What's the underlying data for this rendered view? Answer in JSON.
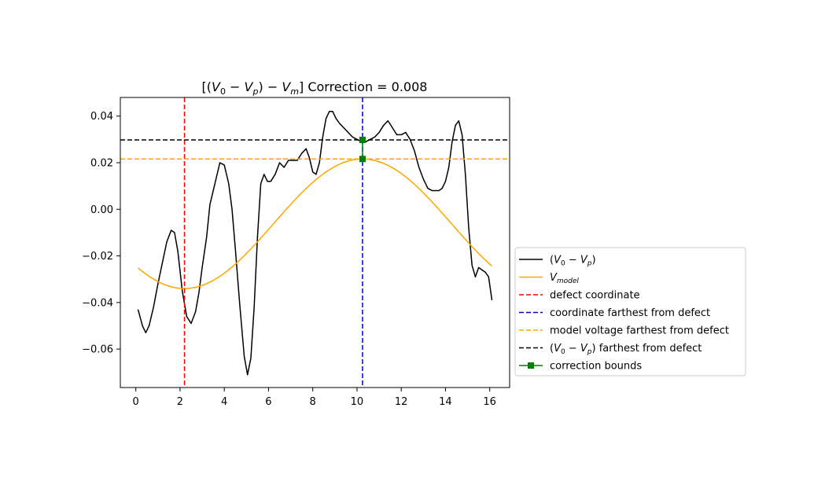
{
  "chart_data": {
    "type": "line",
    "title": "[(V₀ − Vₚ) − Vₘ] Correction = 0.008",
    "title_parts": {
      "prefix": "[(",
      "v0": "V",
      "v0_sub": "0",
      "minus1": " − ",
      "vp": "V",
      "vp_sub": "p",
      "mid": ") − ",
      "vm": "V",
      "vm_sub": "m",
      "suffix": "] Correction = 0.008"
    },
    "xlabel": "",
    "ylabel": "",
    "xlim": [
      -0.7,
      16.9
    ],
    "ylim": [
      -0.0765,
      0.048
    ],
    "xticks": [
      0,
      2,
      4,
      6,
      8,
      10,
      12,
      14,
      16
    ],
    "yticks": [
      -0.06,
      -0.04,
      -0.02,
      0.0,
      0.02,
      0.04
    ],
    "ytick_labels": [
      "−0.06",
      "−0.04",
      "−0.02",
      "0.00",
      "0.02",
      "0.04"
    ],
    "grid": false,
    "legend_position": "outside-right",
    "series": [
      {
        "name": "(V₀ − Vₚ)",
        "color": "#000000",
        "style": "solid",
        "x": [
          0.1,
          0.3,
          0.45,
          0.6,
          0.8,
          1.0,
          1.2,
          1.4,
          1.6,
          1.75,
          1.9,
          2.1,
          2.3,
          2.5,
          2.7,
          2.85,
          3.0,
          3.2,
          3.35,
          3.5,
          3.65,
          3.8,
          4.0,
          4.2,
          4.35,
          4.5,
          4.7,
          4.9,
          5.05,
          5.2,
          5.35,
          5.5,
          5.65,
          5.8,
          5.95,
          6.1,
          6.3,
          6.5,
          6.7,
          6.9,
          7.1,
          7.3,
          7.5,
          7.7,
          7.85,
          8.0,
          8.15,
          8.3,
          8.45,
          8.6,
          8.75,
          8.9,
          9.05,
          9.2,
          9.4,
          9.6,
          9.8,
          10.0,
          10.2,
          10.4,
          10.6,
          10.8,
          11.0,
          11.2,
          11.4,
          11.6,
          11.8,
          12.0,
          12.2,
          12.4,
          12.6,
          12.8,
          13.0,
          13.2,
          13.4,
          13.55,
          13.7,
          13.85,
          14.0,
          14.15,
          14.3,
          14.45,
          14.6,
          14.75,
          14.9,
          15.05,
          15.2,
          15.35,
          15.5,
          15.65,
          15.8,
          15.95,
          16.1
        ],
        "y": [
          -0.043,
          -0.05,
          -0.053,
          -0.05,
          -0.042,
          -0.032,
          -0.023,
          -0.014,
          -0.009,
          -0.01,
          -0.018,
          -0.035,
          -0.046,
          -0.049,
          -0.044,
          -0.036,
          -0.025,
          -0.012,
          0.002,
          0.008,
          0.014,
          0.02,
          0.019,
          0.011,
          0.0,
          -0.017,
          -0.041,
          -0.063,
          -0.071,
          -0.064,
          -0.042,
          -0.012,
          0.011,
          0.015,
          0.012,
          0.012,
          0.015,
          0.02,
          0.018,
          0.021,
          0.021,
          0.021,
          0.024,
          0.026,
          0.022,
          0.016,
          0.015,
          0.02,
          0.031,
          0.039,
          0.042,
          0.042,
          0.039,
          0.037,
          0.035,
          0.033,
          0.031,
          0.03,
          0.029,
          0.029,
          0.03,
          0.031,
          0.033,
          0.036,
          0.038,
          0.035,
          0.032,
          0.032,
          0.033,
          0.03,
          0.025,
          0.018,
          0.013,
          0.009,
          0.008,
          0.008,
          0.008,
          0.009,
          0.012,
          0.018,
          0.029,
          0.036,
          0.038,
          0.032,
          0.015,
          -0.008,
          -0.024,
          -0.029,
          -0.025,
          -0.026,
          -0.027,
          -0.029,
          -0.039
        ]
      },
      {
        "name": "V_model",
        "name_parts": {
          "main": "V",
          "sub": "model"
        },
        "color": "#ffa500",
        "style": "solid",
        "model": {
          "amplitude": 0.0278,
          "offset": -0.0062,
          "center": 10.25,
          "period": 16.1,
          "x_start": 0.1,
          "x_end": 16.1
        }
      },
      {
        "name": "defect coordinate",
        "color": "#ff0000",
        "style": "dashed",
        "orientation": "vertical",
        "value": 2.2
      },
      {
        "name": "coordinate farthest from defect",
        "color": "#0000cd",
        "style": "dashed",
        "orientation": "vertical",
        "value": 10.25
      },
      {
        "name": "model voltage farthest from defect",
        "color": "#ffa500",
        "style": "dashed",
        "orientation": "horizontal",
        "value": 0.0216
      },
      {
        "name": "(V₀ − Vₚ) farthest from defect",
        "color": "#000000",
        "style": "dashed",
        "orientation": "horizontal",
        "value": 0.0298
      },
      {
        "name": "correction bounds",
        "color": "#008000",
        "style": "solid-marker",
        "x": [
          10.25,
          10.25
        ],
        "y": [
          0.0216,
          0.0298
        ]
      }
    ],
    "legend": [
      {
        "label_parts": [
          "(",
          "V",
          "0",
          " − ",
          "V",
          "p",
          ")"
        ],
        "kind": "vp"
      },
      {
        "label_parts": [
          "V",
          "model"
        ],
        "kind": "vmodel"
      },
      {
        "label": "defect coordinate"
      },
      {
        "label": "coordinate farthest from defect"
      },
      {
        "label": "model voltage farthest from defect"
      },
      {
        "label_parts": [
          "(",
          "V",
          "0",
          " − ",
          "V",
          "p",
          ") farthest from defect"
        ],
        "kind": "vpfar"
      },
      {
        "label": "correction bounds"
      }
    ]
  }
}
